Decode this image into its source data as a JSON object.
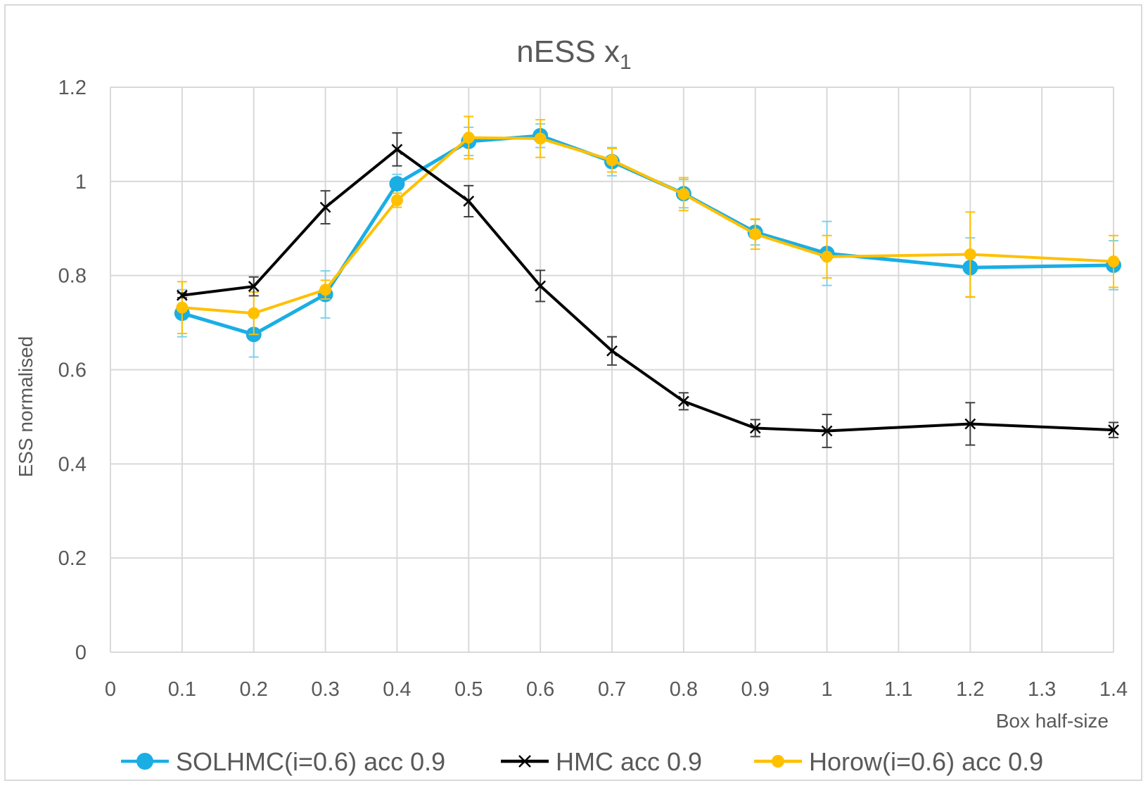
{
  "chart_data": {
    "type": "line",
    "title": "nESS x",
    "title_subscript": "1",
    "xlabel": "Box half-size",
    "ylabel": "ESS normalised",
    "xlim": [
      0,
      1.4
    ],
    "ylim": [
      0,
      1.2
    ],
    "x_ticks": [
      0,
      0.1,
      0.2,
      0.3,
      0.4,
      0.5,
      0.6,
      0.7,
      0.8,
      0.9,
      1,
      1.1,
      1.2,
      1.3,
      1.4
    ],
    "x_tick_labels": [
      "0",
      "0.1",
      "0.2",
      "0.3",
      "0.4",
      "0.5",
      "0.6",
      "0.7",
      "0.8",
      "0.9",
      "1",
      "1.1",
      "1.2",
      "1.3",
      "1.4"
    ],
    "y_ticks": [
      0,
      0.2,
      0.4,
      0.6,
      0.8,
      1,
      1.2
    ],
    "y_tick_labels": [
      "0",
      "0.2",
      "0.4",
      "0.6",
      "0.8",
      "1",
      "1.2"
    ],
    "grid": true,
    "legend_position": "bottom",
    "series": [
      {
        "name": "SOLHMC(i=0.6) acc 0.9",
        "color": "#1aaee5",
        "marker": "circle",
        "x": [
          0.1,
          0.2,
          0.3,
          0.4,
          0.5,
          0.6,
          0.7,
          0.8,
          0.9,
          1,
          1.2,
          1.4
        ],
        "y": [
          0.72,
          0.675,
          0.76,
          0.995,
          1.085,
          1.097,
          1.042,
          0.974,
          0.892,
          0.847,
          0.817,
          0.822
        ],
        "err": [
          0.05,
          0.048,
          0.05,
          0.02,
          0.03,
          0.025,
          0.03,
          0.03,
          0.027,
          0.068,
          0.063,
          0.052
        ]
      },
      {
        "name": "HMC acc 0.9",
        "color": "#000000",
        "marker": "x",
        "x": [
          0.1,
          0.2,
          0.3,
          0.4,
          0.5,
          0.6,
          0.7,
          0.8,
          0.9,
          1,
          1.2,
          1.4
        ],
        "y": [
          0.758,
          0.777,
          0.945,
          1.068,
          0.958,
          0.778,
          0.64,
          0.533,
          0.476,
          0.47,
          0.485,
          0.472
        ],
        "err": [
          0.005,
          0.02,
          0.035,
          0.035,
          0.033,
          0.033,
          0.03,
          0.018,
          0.018,
          0.035,
          0.045,
          0.016
        ]
      },
      {
        "name": "Horow(i=0.6) acc 0.9",
        "color": "#ffc000",
        "marker": "circle",
        "x": [
          0.1,
          0.2,
          0.3,
          0.4,
          0.5,
          0.6,
          0.7,
          0.8,
          0.9,
          1,
          1.2,
          1.4
        ],
        "y": [
          0.732,
          0.72,
          0.77,
          0.96,
          1.093,
          1.091,
          1.045,
          0.973,
          0.888,
          0.84,
          0.845,
          0.83
        ],
        "err": [
          0.055,
          0.045,
          0.02,
          0.015,
          0.045,
          0.04,
          0.025,
          0.035,
          0.032,
          0.045,
          0.09,
          0.055
        ]
      }
    ]
  }
}
